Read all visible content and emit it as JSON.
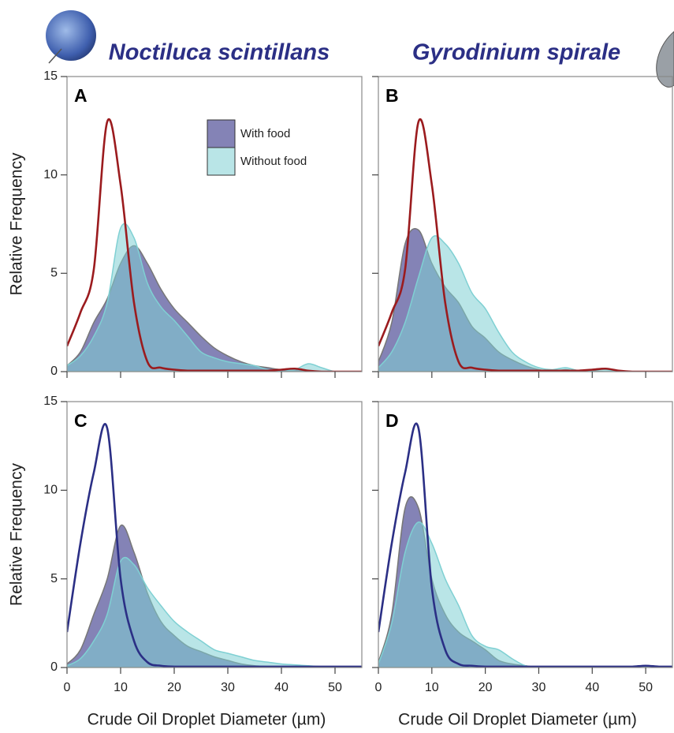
{
  "chart_data": [
    {
      "type": "area",
      "title": "Noctiluca scintillans",
      "panel": "A",
      "ylabel": "Relative Frequency",
      "x": [
        0,
        2.5,
        5,
        7.5,
        10,
        12.5,
        15,
        17.5,
        20,
        22.5,
        25,
        27.5,
        30,
        32.5,
        35,
        37.5,
        40,
        42.5,
        45,
        47.5,
        50,
        52.5,
        55
      ],
      "series": [
        {
          "name": "With food",
          "color": "#5b5a9e",
          "values": [
            0.3,
            1.0,
            2.5,
            3.7,
            5.5,
            6.4,
            5.5,
            4.2,
            3.2,
            2.5,
            1.8,
            1.2,
            0.8,
            0.5,
            0.3,
            0.2,
            0.1,
            0.1,
            0.05,
            0,
            0,
            0,
            0
          ]
        },
        {
          "name": "Without food",
          "color": "#7fd0d3",
          "values": [
            0.3,
            0.8,
            1.8,
            3.5,
            7.3,
            6.8,
            4.5,
            3.3,
            2.6,
            1.8,
            1.0,
            0.7,
            0.5,
            0.4,
            0.3,
            0.1,
            0.1,
            0.1,
            0.4,
            0.2,
            0,
            0,
            0
          ]
        },
        {
          "type": "line",
          "color": "#9b1b1e",
          "values": [
            1.3,
            3.0,
            5.2,
            12.7,
            9.5,
            3.5,
            0.5,
            0.2,
            0.1,
            0.05,
            0.05,
            0.05,
            0.05,
            0.05,
            0.05,
            0.05,
            0.1,
            0.15,
            0.05,
            0,
            0,
            0,
            0
          ]
        }
      ],
      "xlim": [
        0,
        55
      ],
      "ylim": [
        0,
        15
      ],
      "xticks": [
        0,
        10,
        20,
        30,
        40,
        50
      ],
      "yticks": [
        0,
        5,
        10,
        15
      ]
    },
    {
      "type": "area",
      "title": "Gyrodinium spirale",
      "panel": "B",
      "x": [
        0,
        2.5,
        5,
        7.5,
        10,
        12.5,
        15,
        17.5,
        20,
        22.5,
        25,
        27.5,
        30,
        32.5,
        35,
        37.5,
        40,
        42.5,
        45,
        47.5,
        50,
        52.5,
        55
      ],
      "series": [
        {
          "color": "#5b5a9e",
          "values": [
            0.5,
            2.5,
            6.5,
            7.2,
            5.5,
            4.3,
            3.5,
            2.3,
            1.7,
            1.0,
            0.6,
            0.3,
            0.1,
            0,
            0.1,
            0,
            0.05,
            0,
            0,
            0,
            0,
            0,
            0
          ]
        },
        {
          "color": "#7fd0d3",
          "values": [
            0.2,
            1.0,
            2.5,
            4.8,
            6.8,
            6.5,
            5.5,
            4.0,
            3.2,
            2.0,
            1.0,
            0.5,
            0.2,
            0.1,
            0.2,
            0.05,
            0.1,
            0.1,
            0,
            0,
            0,
            0,
            0
          ]
        },
        {
          "type": "line",
          "color": "#9b1b1e",
          "values": [
            1.3,
            3.0,
            5.2,
            12.7,
            9.5,
            3.5,
            0.5,
            0.2,
            0.1,
            0.05,
            0.05,
            0.05,
            0.05,
            0.05,
            0.05,
            0.05,
            0.1,
            0.15,
            0.05,
            0,
            0,
            0,
            0
          ]
        }
      ],
      "xlim": [
        0,
        55
      ],
      "ylim": [
        0,
        15
      ],
      "xticks": [
        0,
        10,
        20,
        30,
        40,
        50
      ],
      "yticks": [
        0,
        5,
        10,
        15
      ]
    },
    {
      "type": "area",
      "panel": "C",
      "ylabel": "Relative Frequency",
      "xlabel": "Crude Oil Droplet Diameter (µm)",
      "x": [
        0,
        2.5,
        5,
        7.5,
        10,
        12.5,
        15,
        17.5,
        20,
        22.5,
        25,
        27.5,
        30,
        32.5,
        35,
        37.5,
        40,
        42.5,
        45,
        47.5,
        50,
        52.5,
        55
      ],
      "series": [
        {
          "color": "#5b5a9e",
          "values": [
            0.2,
            1.0,
            3.0,
            5.0,
            8.0,
            6.5,
            4.2,
            2.6,
            1.8,
            1.2,
            0.9,
            0.6,
            0.4,
            0.2,
            0.1,
            0.05,
            0,
            0,
            0,
            0,
            0,
            0,
            0
          ]
        },
        {
          "color": "#7fd0d3",
          "values": [
            0.1,
            0.5,
            1.5,
            3.0,
            6.0,
            5.8,
            4.5,
            3.5,
            2.6,
            2.0,
            1.5,
            1.0,
            0.8,
            0.6,
            0.4,
            0.3,
            0.2,
            0.15,
            0.1,
            0.05,
            0,
            0,
            0
          ]
        },
        {
          "type": "line",
          "color": "#2b2f85",
          "values": [
            2.0,
            7.0,
            11.0,
            13.5,
            5.0,
            1.5,
            0.3,
            0.1,
            0.05,
            0.05,
            0.05,
            0.05,
            0.05,
            0.05,
            0.05,
            0.05,
            0.05,
            0.05,
            0.05,
            0.05,
            0.05,
            0.05,
            0.05
          ]
        }
      ],
      "xlim": [
        0,
        55
      ],
      "ylim": [
        0,
        15
      ],
      "xticks": [
        0,
        10,
        20,
        30,
        40,
        50
      ],
      "yticks": [
        0,
        5,
        10,
        15
      ]
    },
    {
      "type": "area",
      "panel": "D",
      "xlabel": "Crude Oil Droplet Diameter (µm)",
      "x": [
        0,
        2.5,
        5,
        7.5,
        10,
        12.5,
        15,
        17.5,
        20,
        22.5,
        25,
        27.5,
        30,
        32.5,
        35,
        37.5,
        40,
        42.5,
        45,
        47.5,
        50,
        52.5,
        55
      ],
      "series": [
        {
          "color": "#5b5a9e",
          "values": [
            0.3,
            3.0,
            9.0,
            9.0,
            5.0,
            3.0,
            2.0,
            1.5,
            1.0,
            0.4,
            0.2,
            0.1,
            0,
            0,
            0,
            0,
            0,
            0,
            0,
            0,
            0,
            0,
            0
          ]
        },
        {
          "color": "#7fd0d3",
          "values": [
            0.2,
            2.5,
            6.5,
            8.2,
            7.0,
            5.0,
            3.5,
            1.8,
            1.2,
            1.0,
            0.5,
            0.1,
            0,
            0,
            0,
            0,
            0,
            0,
            0,
            0,
            0,
            0,
            0
          ]
        },
        {
          "type": "line",
          "color": "#2b2f85",
          "values": [
            2.0,
            7.0,
            11.0,
            13.5,
            4.5,
            1.0,
            0.2,
            0.1,
            0.05,
            0.05,
            0.05,
            0.05,
            0.05,
            0.05,
            0.05,
            0.05,
            0.05,
            0.05,
            0.05,
            0.05,
            0.1,
            0.05,
            0.05
          ]
        }
      ],
      "xlim": [
        0,
        55
      ],
      "ylim": [
        0,
        15
      ],
      "xticks": [
        0,
        10,
        20,
        30,
        40,
        50
      ],
      "yticks": [
        0,
        5,
        10,
        15
      ]
    }
  ]
}
